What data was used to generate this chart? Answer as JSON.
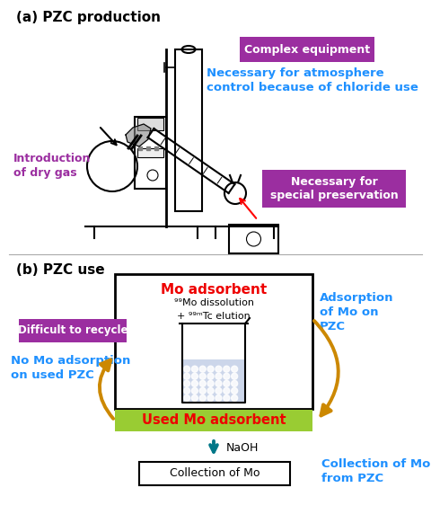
{
  "fig_width": 4.8,
  "fig_height": 5.82,
  "dpi": 100,
  "bg_color": "#ffffff",
  "section_a_label": "(a) PZC production",
  "section_b_label": "(b) PZC use",
  "purple_color": "#9B2EA0",
  "blue_color": "#1E90FF",
  "red_color": "#EE0000",
  "orange_color": "#CC8800",
  "green_bg_color": "#99CC33",
  "teal_color": "#007788",
  "label_complex": "Complex equipment",
  "label_atm": "Necessary for atmosphere\ncontrol because of chloride use",
  "label_dry": "Introduction\nof dry gas",
  "label_special": "Necessary for\nspecial preservation",
  "label_mo_ads": "Mo adsorbent",
  "label_adsorption": "Adsorption\nof Mo on\nPZC",
  "label_difficult": "Difficult to recycle",
  "label_no_mo": "No Mo adsorption\non used PZC",
  "label_used_mo": "Used Mo adsorbent",
  "label_naoh": "NaOH",
  "label_collection_blue": "Collection of Mo\nfrom PZC",
  "label_collection_box": "Collection of Mo"
}
